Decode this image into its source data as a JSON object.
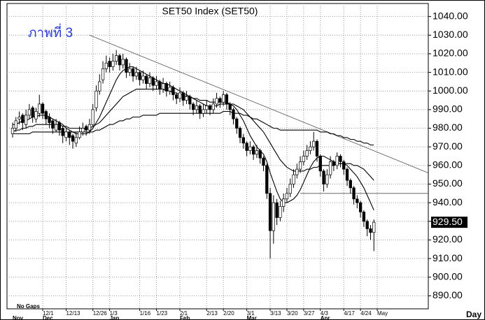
{
  "chart_data": {
    "type": "candlestick",
    "title": "SET50  Index  (SET50)",
    "annotation": "ภาพที่ 3",
    "note": "No Gaps",
    "x_label": "Day",
    "categories": [
      null,
      null,
      null,
      null,
      null,
      null,
      null,
      null,
      null,
      "12/1",
      null,
      null,
      null,
      null,
      null,
      null,
      "12/13",
      null,
      null,
      null,
      null,
      null,
      null,
      null,
      "12/26",
      null,
      null,
      null,
      null,
      "1/3",
      null,
      null,
      null,
      null,
      null,
      null,
      null,
      null,
      "1/16",
      null,
      null,
      null,
      null,
      "1/23",
      null,
      null,
      null,
      null,
      null,
      null,
      "2/1",
      null,
      null,
      null,
      null,
      null,
      null,
      null,
      "2/13",
      null,
      null,
      null,
      null,
      "2/20",
      null,
      null,
      null,
      null,
      null,
      null,
      "3/1",
      null,
      null,
      null,
      null,
      null,
      null,
      "3/13",
      null,
      null,
      null,
      null,
      "3/20",
      null,
      null,
      null,
      null,
      "3/27",
      null,
      null,
      null,
      null,
      "4/3",
      null,
      null,
      null,
      null,
      null,
      null,
      "4/17",
      null,
      null,
      null,
      null,
      "4/24",
      null,
      null,
      null,
      null,
      "May"
    ],
    "months": [
      "Nov",
      null,
      null,
      null,
      null,
      null,
      null,
      null,
      null,
      "Dec",
      null,
      null,
      null,
      null,
      null,
      null,
      null,
      null,
      null,
      null,
      null,
      null,
      null,
      null,
      null,
      null,
      null,
      null,
      null,
      "Jan",
      null,
      null,
      null,
      null,
      null,
      null,
      null,
      null,
      null,
      null,
      null,
      null,
      null,
      null,
      null,
      null,
      null,
      null,
      null,
      null,
      "Feb",
      null,
      null,
      null,
      null,
      null,
      null,
      null,
      null,
      null,
      null,
      null,
      null,
      null,
      null,
      null,
      null,
      null,
      null,
      null,
      "Mar",
      null,
      null,
      null,
      null,
      null,
      null,
      null,
      null,
      null,
      null,
      null,
      null,
      null,
      null,
      null,
      null,
      null,
      null,
      null,
      null,
      null,
      "Apr",
      null,
      null,
      null,
      null,
      null,
      null,
      null,
      null,
      null,
      null,
      null,
      null,
      null,
      null,
      null,
      null,
      null
    ],
    "ohlc": [
      [
        977,
        983,
        975,
        980
      ],
      [
        980,
        986,
        978,
        984
      ],
      [
        985,
        989,
        982,
        986
      ],
      [
        987,
        988,
        979,
        983
      ],
      [
        982,
        990,
        980,
        987
      ],
      [
        987,
        993,
        985,
        990
      ],
      [
        991,
        992,
        983,
        986
      ],
      [
        985,
        991,
        983,
        989
      ],
      [
        988,
        998,
        986,
        993
      ],
      [
        993,
        994,
        985,
        988
      ],
      [
        989,
        990,
        982,
        985
      ],
      [
        986,
        988,
        980,
        983
      ],
      [
        984,
        985,
        977,
        980
      ],
      [
        979,
        985,
        978,
        982
      ],
      [
        983,
        984,
        976,
        979
      ],
      [
        980,
        981,
        972,
        976
      ],
      [
        975,
        980,
        973,
        978
      ],
      [
        978,
        979,
        971,
        975
      ],
      [
        976,
        977,
        969,
        973
      ],
      [
        972,
        978,
        970,
        975
      ],
      [
        975,
        981,
        974,
        978
      ],
      [
        978,
        983,
        976,
        980
      ],
      [
        981,
        982,
        976,
        979
      ],
      [
        979,
        985,
        977,
        982
      ],
      [
        982,
        993,
        981,
        990
      ],
      [
        991,
        1003,
        989,
        1000
      ],
      [
        1000,
        1009,
        998,
        1005
      ],
      [
        1006,
        1016,
        1004,
        1012
      ],
      [
        1012,
        1019,
        1010,
        1015
      ],
      [
        1016,
        1018,
        1010,
        1013
      ],
      [
        1013,
        1020,
        1011,
        1016
      ],
      [
        1016,
        1022,
        1014,
        1019
      ],
      [
        1019,
        1020,
        1011,
        1014
      ],
      [
        1014,
        1020,
        1012,
        1017
      ],
      [
        1017,
        1018,
        1007,
        1010
      ],
      [
        1010,
        1015,
        1008,
        1012
      ],
      [
        1012,
        1013,
        1005,
        1008
      ],
      [
        1008,
        1013,
        1006,
        1010
      ],
      [
        1010,
        1011,
        1003,
        1006
      ],
      [
        1006,
        1011,
        1004,
        1008
      ],
      [
        1008,
        1009,
        1001,
        1004
      ],
      [
        1004,
        1010,
        1002,
        1007
      ],
      [
        1007,
        1008,
        1000,
        1003
      ],
      [
        1003,
        1008,
        1001,
        1005
      ],
      [
        1005,
        1006,
        998,
        1001
      ],
      [
        1001,
        1007,
        999,
        1004
      ],
      [
        1004,
        1005,
        997,
        1000
      ],
      [
        1000,
        1005,
        998,
        1002
      ],
      [
        1002,
        1003,
        995,
        998
      ],
      [
        998,
        999,
        993,
        996
      ],
      [
        996,
        1002,
        994,
        999
      ],
      [
        999,
        1000,
        992,
        995
      ],
      [
        995,
        1000,
        993,
        997
      ],
      [
        997,
        998,
        990,
        993
      ],
      [
        993,
        994,
        987,
        990
      ],
      [
        990,
        995,
        988,
        992
      ],
      [
        992,
        993,
        985,
        988
      ],
      [
        988,
        993,
        986,
        990
      ],
      [
        990,
        995,
        988,
        992
      ],
      [
        992,
        993,
        987,
        990
      ],
      [
        990,
        996,
        988,
        993
      ],
      [
        993,
        999,
        991,
        996
      ],
      [
        996,
        997,
        991,
        994
      ],
      [
        994,
        1000,
        992,
        998
      ],
      [
        998,
        999,
        990,
        993
      ],
      [
        993,
        994,
        987,
        990
      ],
      [
        990,
        991,
        982,
        985
      ],
      [
        985,
        986,
        977,
        980
      ],
      [
        980,
        981,
        972,
        975
      ],
      [
        975,
        977,
        969,
        972
      ],
      [
        972,
        973,
        965,
        968
      ],
      [
        968,
        973,
        966,
        970
      ],
      [
        970,
        971,
        963,
        966
      ],
      [
        966,
        971,
        964,
        968
      ],
      [
        968,
        969,
        961,
        964
      ],
      [
        964,
        965,
        957,
        960
      ],
      [
        960,
        961,
        942,
        945
      ],
      [
        945,
        948,
        910,
        925
      ],
      [
        925,
        944,
        918,
        940
      ],
      [
        940,
        942,
        928,
        932
      ],
      [
        932,
        941,
        930,
        938
      ],
      [
        938,
        945,
        935,
        942
      ],
      [
        942,
        948,
        940,
        945
      ],
      [
        945,
        953,
        943,
        950
      ],
      [
        950,
        958,
        948,
        955
      ],
      [
        955,
        961,
        953,
        958
      ],
      [
        958,
        965,
        956,
        962
      ],
      [
        962,
        968,
        960,
        965
      ],
      [
        965,
        971,
        963,
        968
      ],
      [
        968,
        973,
        966,
        970
      ],
      [
        970,
        978,
        968,
        973
      ],
      [
        973,
        974,
        962,
        965
      ],
      [
        965,
        966,
        954,
        957
      ],
      [
        957,
        958,
        946,
        950
      ],
      [
        950,
        958,
        948,
        955
      ],
      [
        955,
        965,
        953,
        962
      ],
      [
        962,
        963,
        957,
        960
      ],
      [
        960,
        967,
        958,
        965
      ],
      [
        965,
        966,
        959,
        962
      ],
      [
        962,
        963,
        955,
        958
      ],
      [
        958,
        959,
        949,
        952
      ],
      [
        952,
        953,
        945,
        948
      ],
      [
        948,
        949,
        939,
        942
      ],
      [
        942,
        944,
        937,
        940
      ],
      [
        940,
        941,
        932,
        935
      ],
      [
        935,
        936,
        927,
        930
      ],
      [
        930,
        931,
        922,
        926
      ],
      [
        926,
        928,
        920,
        924
      ],
      [
        924,
        931,
        914,
        929.5
      ],
      null
    ],
    "candle_colors": {
      "up": "#ffffff",
      "down": "#000000",
      "outline": "#000000"
    },
    "lines": [
      {
        "color": "#000000",
        "values": [
          982,
          982,
          983,
          984,
          984,
          985,
          986,
          986,
          987,
          987,
          987,
          986,
          985,
          984,
          983,
          982,
          980,
          979,
          978,
          977,
          977,
          977,
          977,
          978,
          980,
          983,
          986,
          990,
          994,
          998,
          1002,
          1006,
          1009,
          1011,
          1012,
          1013,
          1013,
          1012,
          1011,
          1010,
          1009,
          1008,
          1007,
          1006,
          1005,
          1004,
          1004,
          1003,
          1002,
          1001,
          1000,
          999,
          998,
          997,
          996,
          995,
          994,
          993,
          992,
          992,
          992,
          992,
          993,
          993,
          993,
          993,
          992,
          990,
          987,
          984,
          980,
          976,
          973,
          970,
          968,
          966,
          962,
          956,
          951,
          946,
          942,
          940,
          940,
          941,
          942,
          944,
          947,
          951,
          955,
          959,
          962,
          964,
          965,
          965,
          964,
          963,
          962,
          961,
          961,
          961,
          960,
          958,
          956,
          954,
          951,
          948,
          944,
          940,
          936,
          null
        ]
      },
      {
        "color": "#000000",
        "values": [
          978,
          979,
          979,
          980,
          980,
          981,
          981,
          982,
          982,
          982,
          982,
          982,
          982,
          982,
          982,
          981,
          981,
          980,
          980,
          980,
          980,
          980,
          980,
          980,
          981,
          982,
          983,
          985,
          987,
          989,
          991,
          993,
          995,
          997,
          998,
          999,
          1000,
          1001,
          1001,
          1001,
          1001,
          1001,
          1001,
          1001,
          1001,
          1001,
          1000,
          1000,
          999,
          999,
          998,
          998,
          997,
          997,
          996,
          996,
          995,
          995,
          995,
          994,
          994,
          994,
          994,
          994,
          994,
          993,
          993,
          992,
          991,
          990,
          988,
          986,
          984,
          982,
          980,
          978,
          975,
          972,
          969,
          966,
          963,
          961,
          959,
          958,
          957,
          957,
          957,
          957,
          958,
          958,
          959,
          959,
          960,
          960,
          960,
          960,
          960,
          961,
          961,
          961,
          961,
          961,
          960,
          960,
          959,
          958,
          956,
          954,
          952,
          null
        ]
      },
      {
        "color": "#000000",
        "values": [
          977,
          977,
          977,
          977,
          977,
          977,
          978,
          978,
          978,
          978,
          978,
          978,
          978,
          978,
          978,
          978,
          978,
          978,
          978,
          978,
          978,
          978,
          978,
          978,
          978,
          979,
          979,
          980,
          981,
          982,
          982,
          983,
          984,
          984,
          985,
          985,
          986,
          986,
          986,
          987,
          987,
          987,
          987,
          987,
          988,
          988,
          988,
          988,
          988,
          988,
          988,
          988,
          988,
          988,
          988,
          988,
          988,
          988,
          988,
          988,
          988,
          988,
          988,
          989,
          989,
          989,
          988,
          988,
          988,
          987,
          987,
          986,
          985,
          985,
          984,
          983,
          982,
          981,
          980,
          980,
          979,
          979,
          979,
          979,
          979,
          979,
          979,
          979,
          979,
          979,
          979,
          979,
          978,
          978,
          978,
          977,
          977,
          976,
          976,
          975,
          975,
          974,
          974,
          973,
          973,
          972,
          972,
          971,
          971,
          null
        ]
      }
    ],
    "trend_line": [
      1030,
      956
    ],
    "trend_line_color": "#555555",
    "level_line": 945,
    "last_label": "929.50",
    "ylim": [
      883,
      1047
    ],
    "yticks": [
      {
        "value": 890,
        "label": "890.00"
      },
      {
        "value": 900,
        "label": "900.00"
      },
      {
        "value": 910,
        "label": "910.00"
      },
      {
        "value": 920,
        "label": "920.00"
      },
      {
        "value": 930,
        "label": "930.00"
      },
      {
        "value": 940,
        "label": "940.00"
      },
      {
        "value": 950,
        "label": "950.00"
      },
      {
        "value": 960,
        "label": "960.00"
      },
      {
        "value": 970,
        "label": "970.00"
      },
      {
        "value": 980,
        "label": "980.00"
      },
      {
        "value": 990,
        "label": "990.00"
      },
      {
        "value": 1000,
        "label": "1000.00"
      },
      {
        "value": 1010,
        "label": "1010.00"
      },
      {
        "value": 1020,
        "label": "1020.00"
      },
      {
        "value": 1030,
        "label": "1030.00"
      },
      {
        "value": 1040,
        "label": "1040.00"
      }
    ],
    "grid": true,
    "y_axis_side": "right"
  }
}
